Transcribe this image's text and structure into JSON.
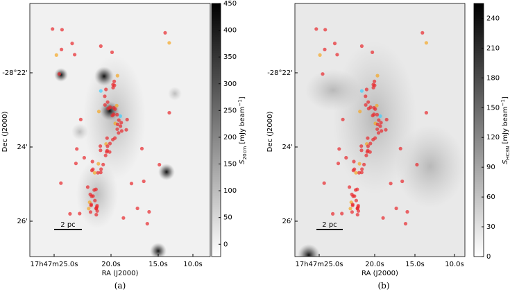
{
  "figure": {
    "panels": [
      {
        "caption": "(a)",
        "x_label": "RA (J2000)",
        "y_label": "Dec (J2000)",
        "x_ticks": [
          "17h47m25.0s",
          "20.0s",
          "15.0s",
          "10.0s"
        ],
        "y_ticks": [
          "-28°22'",
          "24'",
          "26'"
        ],
        "scale_bar": "2 pc",
        "colorbar": {
          "lim": [
            -23,
            450
          ],
          "ticks": [
            0,
            50,
            100,
            150,
            200,
            250,
            300,
            350,
            400,
            450
          ],
          "label": {
            "symbol": "S",
            "subscript": "20cm",
            "unit": " [mJy beam",
            "exponent": "−1",
            "close": "]"
          }
        }
      },
      {
        "caption": "(b)",
        "x_label": "RA (J2000)",
        "y_label": "Dec (J2000)",
        "x_ticks": [
          "17h47m25.0s",
          "20.0s",
          "15.0s",
          "10.0s"
        ],
        "y_ticks": [
          "-28°22'",
          "24'",
          "26'"
        ],
        "scale_bar": "2 pc",
        "colorbar": {
          "lim": [
            0,
            255
          ],
          "ticks": [
            0,
            30,
            60,
            90,
            120,
            150,
            180,
            210,
            240
          ],
          "label": {
            "symbol": "S",
            "subscript": "HC3N",
            "unit": " [mJy beam",
            "exponent": "−1",
            "close": "]"
          }
        }
      }
    ]
  }
}
